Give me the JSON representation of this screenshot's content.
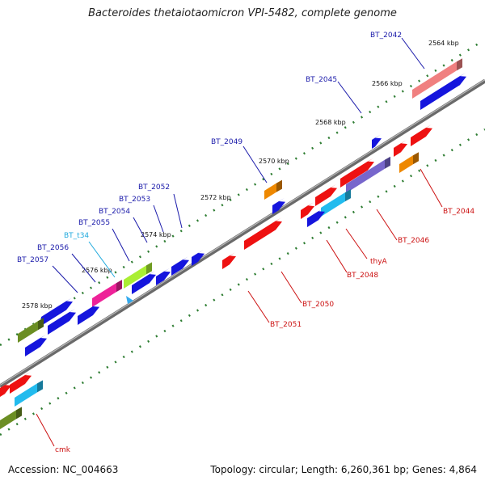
{
  "header": {
    "title": "Bacteroides thetaiotaomicron VPI-5482, complete genome"
  },
  "footer": {
    "accession": "Accession: NC_004663",
    "summary": "Topology: circular; Length: 6,260,361 bp; Genes: 4,864"
  },
  "colors": {
    "backbone": "#7a7a7a",
    "tick_green": "#2e7d32",
    "label_forward": "#1a1aaa",
    "label_reverse": "#cc1111",
    "label_trna": "#22aadd"
  },
  "coordinates": [
    {
      "label": "2564 kbp",
      "pos_kbp": 2564
    },
    {
      "label": "2566 kbp",
      "pos_kbp": 2566
    },
    {
      "label": "2568 kbp",
      "pos_kbp": 2568
    },
    {
      "label": "2570 kbp",
      "pos_kbp": 2570
    },
    {
      "label": "2572 kbp",
      "pos_kbp": 2572
    },
    {
      "label": "2574 kbp",
      "pos_kbp": 2574
    },
    {
      "label": "2576 kbp",
      "pos_kbp": 2576
    },
    {
      "label": "2578 kbp",
      "pos_kbp": 2578
    }
  ],
  "genes": [
    {
      "label": "BT_2042",
      "strand": "forward",
      "color": "#f08080"
    },
    {
      "label": "BT_2045",
      "strand": "forward",
      "color": "#1515dd"
    },
    {
      "label": "BT_2049",
      "strand": "forward",
      "color": "#ee8800"
    },
    {
      "label": "BT_2052",
      "strand": "forward",
      "color": "#1515dd"
    },
    {
      "label": "BT_2053",
      "strand": "forward",
      "color": "#1515dd"
    },
    {
      "label": "BT_2054",
      "strand": "forward",
      "color": "#1515dd"
    },
    {
      "label": "BT_2055",
      "strand": "forward",
      "color": "#aaee33"
    },
    {
      "label": "BT_t34",
      "strand": "forward",
      "color": "#33aaee"
    },
    {
      "label": "BT_2056",
      "strand": "forward",
      "color": "#ee2299"
    },
    {
      "label": "BT_2057",
      "strand": "forward",
      "color": "#1515dd"
    },
    {
      "label": "BT_2044",
      "strand": "reverse",
      "color": "#ee1111"
    },
    {
      "label": "BT_2046",
      "strand": "reverse",
      "color": "#7766cc"
    },
    {
      "label": "thyA",
      "strand": "reverse",
      "color": "#22bbee"
    },
    {
      "label": "BT_2048",
      "strand": "reverse",
      "color": "#1515dd"
    },
    {
      "label": "BT_2050",
      "strand": "reverse",
      "color": "#ee1111"
    },
    {
      "label": "BT_2051",
      "strand": "reverse",
      "color": "#ee1111"
    },
    {
      "label": "cmk",
      "strand": "reverse",
      "color": "#22bbee"
    }
  ]
}
